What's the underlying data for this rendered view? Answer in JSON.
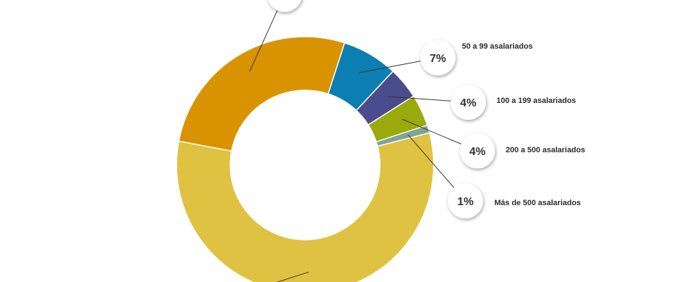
{
  "chart_data": {
    "type": "pie",
    "style": "donut",
    "slices": [
      {
        "label": "Más de 500 asalariados",
        "value": 1,
        "value_label": "1%",
        "color": "#7fa396"
      },
      {
        "label": "200 a 500 asalariados",
        "value": 4,
        "value_label": "4%",
        "color": "#9aa90c"
      },
      {
        "label": "100 a 199 asalariados",
        "value": 4,
        "value_label": "4%",
        "color": "#4b4c8d"
      },
      {
        "label": "50 a 99 asalariados",
        "value": 7,
        "value_label": "7%",
        "color": "#0b7fb1"
      },
      {
        "label": "",
        "value": 27,
        "value_label": "",
        "color": "#d99300"
      },
      {
        "label": "",
        "value": 57,
        "value_label": "",
        "color": "#dfc241"
      }
    ],
    "legend": "callouts-right"
  }
}
